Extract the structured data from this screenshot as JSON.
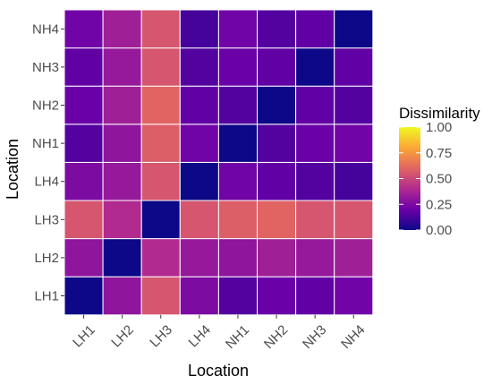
{
  "chart_data": {
    "type": "heatmap",
    "title": "",
    "xlabel": "Location",
    "ylabel": "Location",
    "x_categories": [
      "LH1",
      "LH2",
      "LH3",
      "LH4",
      "NH1",
      "NH2",
      "NH3",
      "NH4"
    ],
    "y_categories": [
      "LH1",
      "LH2",
      "LH3",
      "LH4",
      "NH1",
      "NH2",
      "NH3",
      "NH4"
    ],
    "values": [
      [
        0.0,
        0.3,
        0.55,
        0.25,
        0.15,
        0.2,
        0.18,
        0.22
      ],
      [
        0.3,
        0.0,
        0.4,
        0.32,
        0.3,
        0.35,
        0.32,
        0.35
      ],
      [
        0.55,
        0.4,
        0.0,
        0.55,
        0.58,
        0.6,
        0.55,
        0.55
      ],
      [
        0.25,
        0.32,
        0.55,
        0.0,
        0.22,
        0.18,
        0.15,
        0.12
      ],
      [
        0.15,
        0.3,
        0.58,
        0.22,
        0.0,
        0.15,
        0.2,
        0.22
      ],
      [
        0.2,
        0.35,
        0.6,
        0.18,
        0.15,
        0.0,
        0.18,
        0.15
      ],
      [
        0.18,
        0.32,
        0.55,
        0.15,
        0.2,
        0.18,
        0.0,
        0.18
      ],
      [
        0.22,
        0.35,
        0.55,
        0.12,
        0.22,
        0.15,
        0.18,
        0.0
      ]
    ],
    "legend": {
      "title": "Dissimilarity",
      "range": [
        0,
        1
      ],
      "ticks": [
        "0.00",
        "0.25",
        "0.50",
        "0.75",
        "1.00"
      ],
      "tick_values": [
        0,
        0.25,
        0.5,
        0.75,
        1.0
      ],
      "placement": "right"
    },
    "colormap": "plasma",
    "colors": [
      "#0d0887",
      "#6a00a8",
      "#b12a90",
      "#e16462",
      "#fca636",
      "#f0f921"
    ],
    "grid": true,
    "panel_background": "#ebebeb"
  }
}
